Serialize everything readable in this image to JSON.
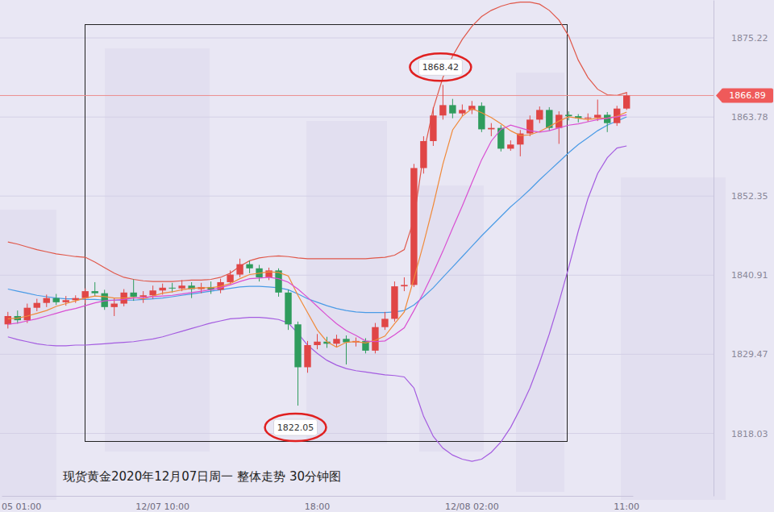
{
  "chart_data": {
    "type": "candlestick",
    "title": "现货黄金2020年12月07日周一 整体走势 30分钟图",
    "categories": [
      null,
      "05 01:00",
      null,
      null,
      null,
      null,
      null,
      null,
      null,
      null,
      null,
      null,
      null,
      null,
      null,
      null,
      "12/07 10:00",
      null,
      null,
      null,
      null,
      null,
      null,
      null,
      null,
      null,
      null,
      null,
      null,
      null,
      null,
      null,
      "18:00",
      null,
      null,
      null,
      null,
      null,
      null,
      null,
      null,
      null,
      null,
      null,
      null,
      null,
      null,
      null,
      "12/08 02:00",
      null,
      null,
      null,
      null,
      null,
      null,
      null,
      null,
      null,
      null,
      null,
      null,
      null,
      null,
      null,
      "11:00"
    ],
    "open": [
      1833.8,
      1835.0,
      1834.4,
      1836.2,
      1836.9,
      1837.6,
      1837.0,
      1837.3,
      1837.6,
      1838.6,
      1838.3,
      1836.3,
      1836.8,
      1838.4,
      1837.8,
      1838.0,
      1838.7,
      1839.1,
      1839.0,
      1839.4,
      1838.9,
      1839.2,
      1838.8,
      1839.9,
      1841.0,
      1842.5,
      1841.9,
      1840.6,
      1841.6,
      1838.4,
      1833.8,
      1827.6,
      1830.8,
      1831.3,
      1831.0,
      1831.7,
      1831.2,
      1831.4,
      1830.0,
      1833.4,
      1834.6,
      1839.3,
      1839.5,
      1856.4,
      1860.3,
      1864.0,
      1865.5,
      1864.3,
      1864.8,
      1865.4,
      1862.0,
      1862.2,
      1859.2,
      1859.8,
      1861.4,
      1863.4,
      1864.8,
      1862.2,
      1864.1,
      1863.9,
      1863.6,
      1863.7,
      1864.1,
      1862.9,
      1865.0
    ],
    "high": [
      1835.6,
      1835.8,
      1836.8,
      1837.5,
      1838.1,
      1838.2,
      1837.9,
      1838.0,
      1839.0,
      1839.9,
      1838.8,
      1837.6,
      1838.9,
      1840.3,
      1838.6,
      1839.4,
      1839.7,
      1839.8,
      1840.2,
      1839.9,
      1839.8,
      1840.0,
      1840.4,
      1841.6,
      1843.3,
      1843.0,
      1842.4,
      1842.0,
      1841.9,
      1838.8,
      1834.2,
      1831.4,
      1832.4,
      1832.0,
      1832.3,
      1832.2,
      1831.9,
      1831.8,
      1834.0,
      1835.6,
      1840.0,
      1840.6,
      1857.0,
      1861.0,
      1865.2,
      1868.42,
      1866.4,
      1865.6,
      1866.1,
      1865.9,
      1862.9,
      1862.6,
      1860.4,
      1861.9,
      1864.0,
      1865.3,
      1865.2,
      1864.6,
      1864.6,
      1864.2,
      1864.3,
      1866.3,
      1864.5,
      1865.4,
      1867.4
    ],
    "low": [
      1833.2,
      1833.9,
      1834.0,
      1835.7,
      1836.3,
      1836.6,
      1836.5,
      1836.9,
      1836.8,
      1837.8,
      1835.9,
      1835.0,
      1836.4,
      1837.2,
      1836.9,
      1837.5,
      1838.1,
      1838.4,
      1838.6,
      1837.6,
      1838.3,
      1838.2,
      1838.3,
      1839.6,
      1840.6,
      1841.2,
      1840.0,
      1840.2,
      1837.8,
      1833.0,
      1822.05,
      1826.8,
      1830.2,
      1830.4,
      1830.5,
      1828.0,
      1830.6,
      1829.6,
      1829.6,
      1833.0,
      1834.2,
      1838.6,
      1839.2,
      1855.6,
      1859.6,
      1863.4,
      1863.6,
      1863.9,
      1864.2,
      1861.6,
      1861.0,
      1858.8,
      1858.9,
      1858.1,
      1861.0,
      1862.9,
      1861.8,
      1859.9,
      1863.3,
      1863.0,
      1863.1,
      1863.2,
      1861.6,
      1862.5,
      1864.8
    ],
    "close": [
      1835.0,
      1834.4,
      1836.2,
      1836.9,
      1837.6,
      1837.0,
      1837.3,
      1837.6,
      1838.6,
      1838.3,
      1836.3,
      1836.8,
      1838.4,
      1837.8,
      1838.0,
      1838.7,
      1839.1,
      1839.0,
      1839.4,
      1838.9,
      1839.2,
      1838.8,
      1839.9,
      1841.0,
      1842.5,
      1841.9,
      1840.6,
      1841.6,
      1838.4,
      1833.8,
      1827.6,
      1830.8,
      1831.3,
      1831.0,
      1831.7,
      1831.2,
      1831.4,
      1830.0,
      1833.4,
      1834.6,
      1839.3,
      1839.5,
      1856.4,
      1860.3,
      1864.0,
      1865.5,
      1864.3,
      1864.8,
      1865.4,
      1862.0,
      1862.2,
      1859.2,
      1859.8,
      1861.4,
      1863.4,
      1864.8,
      1862.2,
      1864.1,
      1863.9,
      1863.6,
      1863.7,
      1864.1,
      1862.9,
      1865.0,
      1866.89
    ],
    "series": [
      {
        "type": "line",
        "color": "#e0584a",
        "values": [
          1845.7,
          1845.4,
          1845.0,
          1844.6,
          1844.3,
          1844.0,
          1843.8,
          1843.6,
          1843.5,
          1842.8,
          1842.0,
          1841.2,
          1840.6,
          1840.3,
          1840.1,
          1840.0,
          1840.0,
          1840.0,
          1840.1,
          1840.2,
          1840.2,
          1840.3,
          1840.6,
          1841.2,
          1842.2,
          1843.0,
          1843.4,
          1843.6,
          1843.7,
          1843.6,
          1843.4,
          1843.3,
          1843.3,
          1843.3,
          1843.3,
          1843.3,
          1843.3,
          1843.3,
          1843.4,
          1843.5,
          1843.8,
          1844.6,
          1849.0,
          1858.5,
          1865.0,
          1869.5,
          1872.6,
          1875.0,
          1876.9,
          1878.3,
          1879.2,
          1879.8,
          1880.2,
          1880.4,
          1880.4,
          1880.1,
          1879.2,
          1877.8,
          1875.5,
          1872.0,
          1869.5,
          1867.8,
          1867.0,
          1866.9,
          1867.3
        ]
      },
      {
        "type": "line",
        "color": "#4a9be6",
        "values": [
          1838.9,
          1838.6,
          1838.3,
          1838.0,
          1837.8,
          1837.6,
          1837.5,
          1837.5,
          1837.4,
          1837.4,
          1837.3,
          1837.3,
          1837.3,
          1837.3,
          1837.4,
          1837.5,
          1837.6,
          1837.8,
          1838.0,
          1838.2,
          1838.4,
          1838.6,
          1838.8,
          1839.0,
          1839.2,
          1839.3,
          1839.3,
          1839.2,
          1839.1,
          1838.8,
          1838.2,
          1837.5,
          1837.0,
          1836.5,
          1836.1,
          1835.8,
          1835.6,
          1835.5,
          1835.5,
          1835.5,
          1835.6,
          1835.8,
          1836.6,
          1837.8,
          1839.1,
          1840.6,
          1842.1,
          1843.6,
          1845.1,
          1846.6,
          1848.0,
          1849.4,
          1850.8,
          1852.0,
          1853.3,
          1854.7,
          1856.0,
          1857.3,
          1858.6,
          1859.8,
          1860.8,
          1861.8,
          1862.6,
          1863.2,
          1863.8
        ]
      },
      {
        "type": "line",
        "color": "#a45ce0",
        "values": [
          1832.0,
          1831.6,
          1831.3,
          1831.0,
          1830.8,
          1830.7,
          1830.7,
          1830.8,
          1830.8,
          1830.9,
          1831.0,
          1831.1,
          1831.2,
          1831.3,
          1831.5,
          1831.7,
          1832.0,
          1832.4,
          1832.8,
          1833.2,
          1833.6,
          1834.0,
          1834.3,
          1834.6,
          1834.7,
          1834.8,
          1834.8,
          1834.7,
          1834.5,
          1834.0,
          1832.5,
          1830.8,
          1829.6,
          1828.6,
          1827.9,
          1827.4,
          1827.1,
          1826.9,
          1826.7,
          1826.5,
          1826.4,
          1826.2,
          1824.6,
          1820.5,
          1817.6,
          1815.9,
          1814.9,
          1814.3,
          1814.0,
          1814.3,
          1815.3,
          1816.8,
          1818.9,
          1821.6,
          1824.6,
          1828.3,
          1832.4,
          1837.0,
          1842.0,
          1847.3,
          1852.0,
          1855.6,
          1857.9,
          1859.3,
          1859.6
        ]
      },
      {
        "type": "line",
        "color": "#f08a3a",
        "values": [
          1834.6,
          1834.7,
          1835.0,
          1835.4,
          1835.8,
          1836.4,
          1836.8,
          1837.2,
          1837.6,
          1837.9,
          1837.8,
          1837.6,
          1837.6,
          1837.7,
          1837.5,
          1837.9,
          1838.3,
          1838.5,
          1838.8,
          1839.0,
          1839.1,
          1839.1,
          1839.3,
          1839.7,
          1840.4,
          1841.0,
          1841.2,
          1841.4,
          1841.3,
          1840.8,
          1838.0,
          1835.5,
          1833.0,
          1831.3,
          1830.5,
          1831.2,
          1831.3,
          1831.1,
          1831.5,
          1832.1,
          1833.9,
          1835.6,
          1840.4,
          1845.5,
          1851.0,
          1857.0,
          1861.9,
          1863.9,
          1865.0,
          1864.4,
          1863.7,
          1862.8,
          1861.8,
          1861.1,
          1861.2,
          1861.7,
          1862.4,
          1863.2,
          1863.8,
          1863.6,
          1863.4,
          1863.6,
          1863.6,
          1863.9,
          1864.5
        ]
      },
      {
        "type": "line",
        "color": "#d94fd2",
        "values": [
          1833.8,
          1834.0,
          1834.3,
          1834.6,
          1835.0,
          1835.4,
          1835.8,
          1836.1,
          1836.5,
          1836.9,
          1837.2,
          1837.3,
          1837.4,
          1837.6,
          1837.7,
          1837.8,
          1837.9,
          1838.0,
          1838.2,
          1838.4,
          1838.6,
          1838.8,
          1839.1,
          1839.5,
          1840.0,
          1840.4,
          1840.5,
          1840.6,
          1840.4,
          1839.9,
          1838.9,
          1837.7,
          1836.4,
          1835.1,
          1833.9,
          1832.9,
          1832.2,
          1831.4,
          1831.3,
          1831.4,
          1832.3,
          1833.3,
          1835.8,
          1838.4,
          1841.3,
          1844.4,
          1847.7,
          1850.9,
          1854.3,
          1857.6,
          1860.3,
          1862.0,
          1862.6,
          1862.2,
          1861.8,
          1861.6,
          1861.8,
          1862.2,
          1862.6,
          1862.8,
          1863.1,
          1863.4,
          1863.6,
          1863.8,
          1864.1
        ]
      }
    ],
    "annotations": [
      1868.42,
      1822.05
    ],
    "current_price": 1866.89,
    "ylim": [
      1809.0,
      1880.7
    ],
    "yticks": [
      1818.03,
      1829.47,
      1840.91,
      1852.35,
      1863.78,
      1875.22
    ],
    "grid": true
  }
}
